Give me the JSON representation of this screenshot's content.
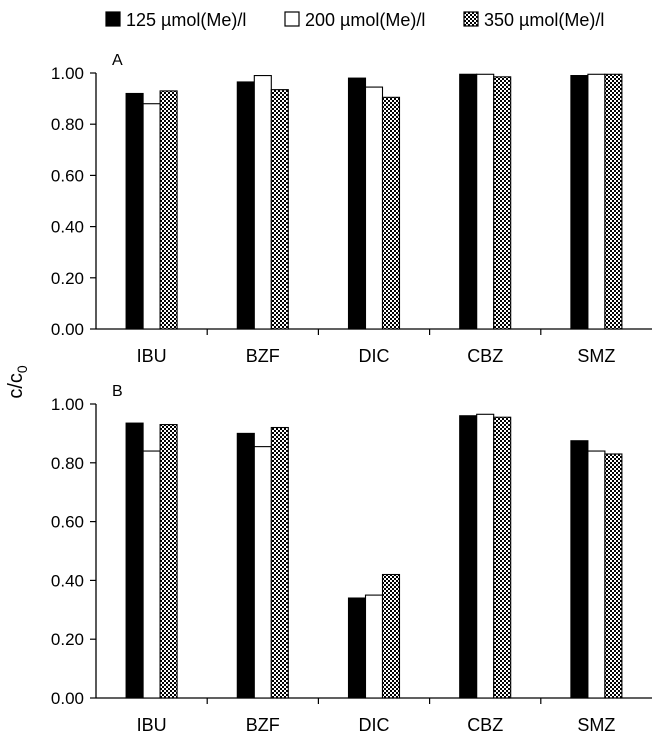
{
  "legend": [
    {
      "label": "125 µmol(Me)/l",
      "fill": "black"
    },
    {
      "label": "200 µmol(Me)/l",
      "fill": "white"
    },
    {
      "label": "350 µmol(Me)/l",
      "fill": "checker"
    }
  ],
  "ylabel": {
    "main": "c/c",
    "sub": "0"
  },
  "chart_data": [
    {
      "type": "bar",
      "panel_label": "A",
      "categories": [
        "IBU",
        "BZF",
        "DIC",
        "CBZ",
        "SMZ"
      ],
      "ylim": [
        0,
        1
      ],
      "yticks": [
        "0.00",
        "0.20",
        "0.40",
        "0.60",
        "0.80",
        "1.00"
      ],
      "grid": false,
      "legend_position": "top",
      "series": [
        {
          "name": "125 µmol(Me)/l",
          "values": [
            0.92,
            0.965,
            0.98,
            0.995,
            0.99
          ]
        },
        {
          "name": "200 µmol(Me)/l",
          "values": [
            0.88,
            0.99,
            0.945,
            0.995,
            0.995
          ]
        },
        {
          "name": "350 µmol(Me)/l",
          "values": [
            0.93,
            0.935,
            0.905,
            0.985,
            0.995
          ]
        }
      ]
    },
    {
      "type": "bar",
      "panel_label": "B",
      "categories": [
        "IBU",
        "BZF",
        "DIC",
        "CBZ",
        "SMZ"
      ],
      "ylim": [
        0,
        1
      ],
      "yticks": [
        "0.00",
        "0.20",
        "0.40",
        "0.60",
        "0.80",
        "1.00"
      ],
      "grid": false,
      "series": [
        {
          "name": "125 µmol(Me)/l",
          "values": [
            0.935,
            0.9,
            0.34,
            0.96,
            0.875
          ]
        },
        {
          "name": "200 µmol(Me)/l",
          "values": [
            0.84,
            0.855,
            0.35,
            0.965,
            0.84
          ]
        },
        {
          "name": "350 µmol(Me)/l",
          "values": [
            0.93,
            0.92,
            0.42,
            0.955,
            0.83
          ]
        }
      ]
    }
  ]
}
